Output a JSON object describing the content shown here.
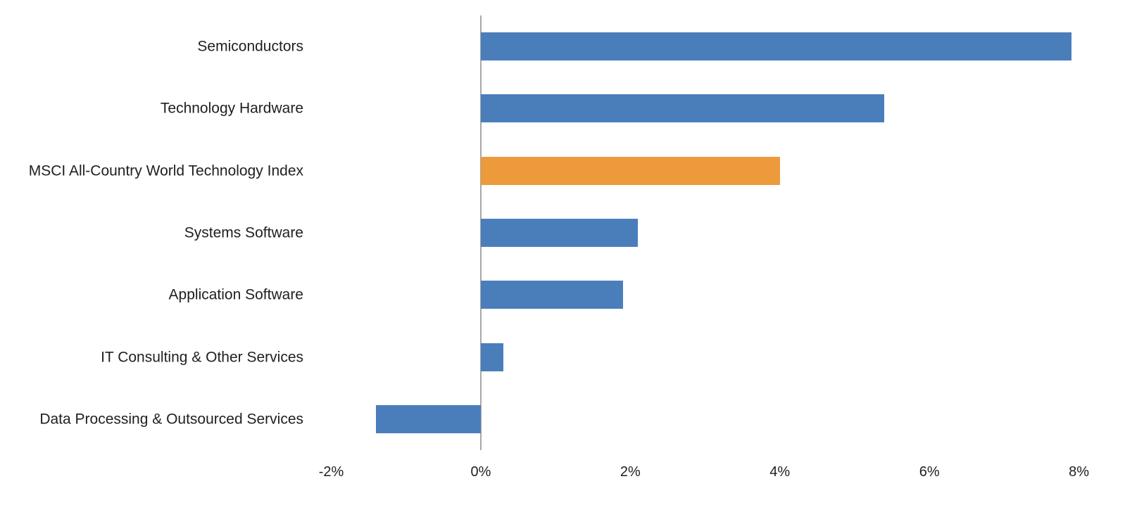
{
  "chart_data": {
    "type": "bar",
    "orientation": "horizontal",
    "title": "",
    "xlabel": "",
    "ylabel": "",
    "categories": [
      "Semiconductors",
      "Technology Hardware",
      "MSCI All-Country World Technology Index",
      "Systems Software",
      "Application Software",
      "IT Consulting & Other Services",
      "Data Processing & Outsourced Services"
    ],
    "values": [
      7.9,
      5.4,
      4.0,
      2.1,
      1.9,
      0.3,
      -1.4
    ],
    "bar_colors": [
      "#4A7EBB",
      "#4A7EBB",
      "#EC9A3C",
      "#4A7EBB",
      "#4A7EBB",
      "#4A7EBB",
      "#4A7EBB"
    ],
    "highlight_index": 2,
    "xlim": [
      -2.24,
      8.87
    ],
    "x_ticks": [
      -2,
      0,
      2,
      4,
      6,
      8
    ],
    "x_tick_labels": [
      "-2%",
      "0%",
      "2%",
      "4%",
      "6%",
      "8%"
    ],
    "grid": false,
    "legend": false,
    "zero_axis_line": true
  },
  "colors": {
    "bar_blue": "#4A7EBB",
    "bar_orange": "#EC9A3C",
    "axis_line": "#A8A8A8",
    "label_text": "#1F1F1F",
    "background": "#FFFFFF"
  }
}
